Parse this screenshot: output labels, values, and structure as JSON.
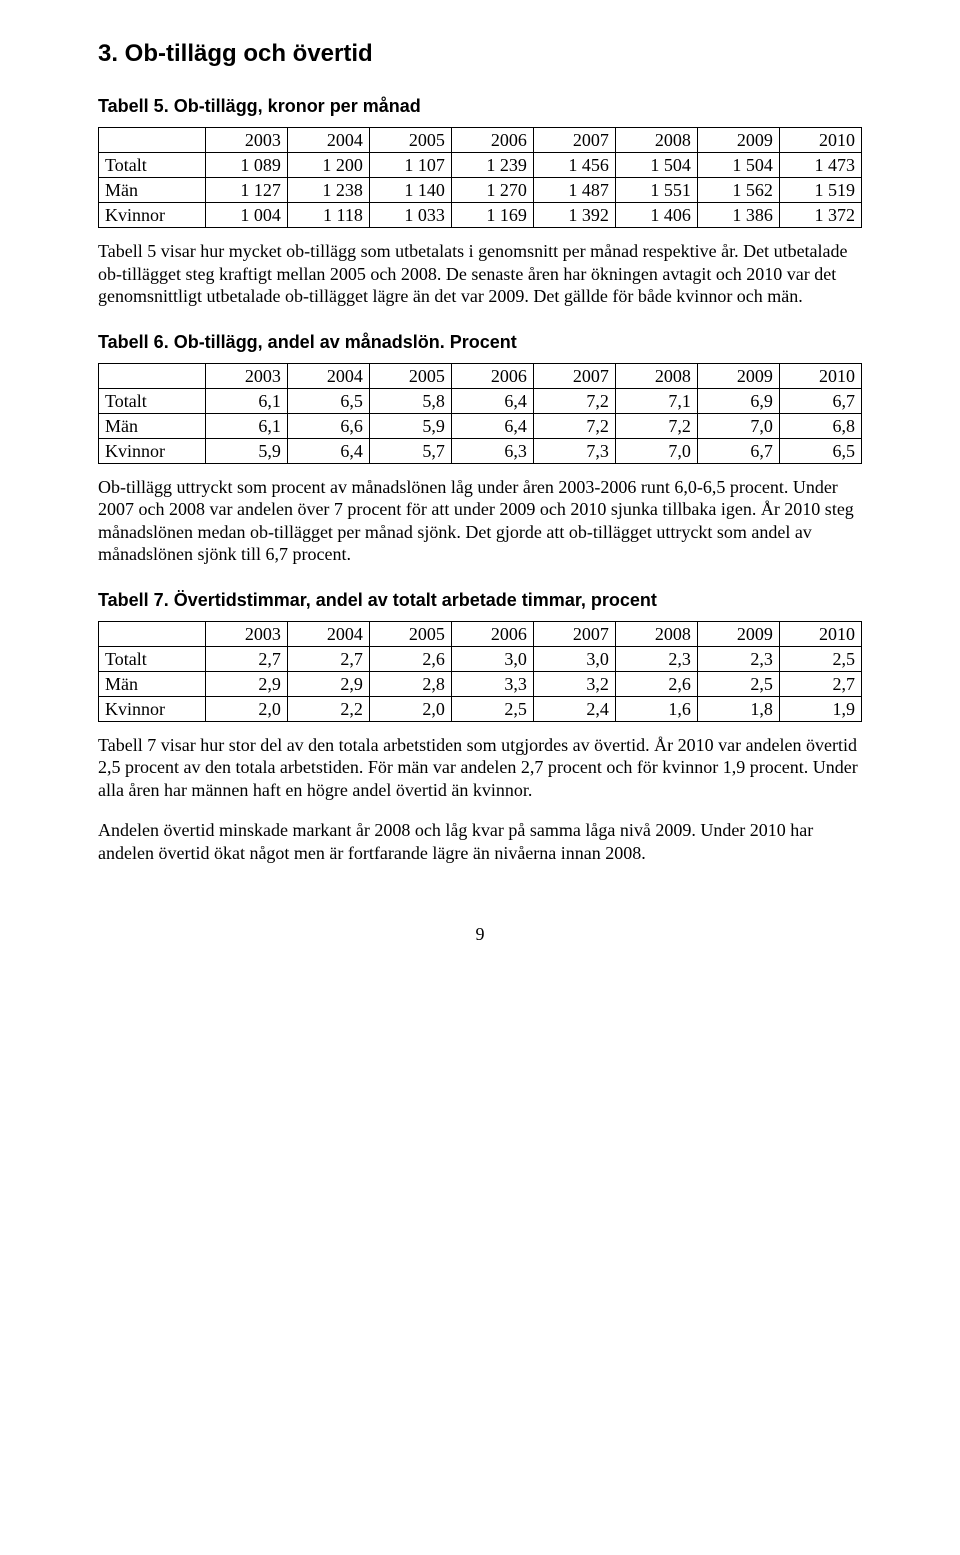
{
  "section_title": "3. Ob-tillägg och övertid",
  "years": [
    "2003",
    "2004",
    "2005",
    "2006",
    "2007",
    "2008",
    "2009",
    "2010"
  ],
  "table5": {
    "title": "Tabell 5. Ob-tillägg, kronor per månad",
    "rows": [
      {
        "label": "Totalt",
        "v": [
          "1 089",
          "1 200",
          "1 107",
          "1 239",
          "1 456",
          "1 504",
          "1 504",
          "1 473"
        ]
      },
      {
        "label": "Män",
        "v": [
          "1 127",
          "1 238",
          "1 140",
          "1 270",
          "1 487",
          "1 551",
          "1 562",
          "1 519"
        ]
      },
      {
        "label": "Kvinnor",
        "v": [
          "1 004",
          "1 118",
          "1 033",
          "1 169",
          "1 392",
          "1 406",
          "1 386",
          "1 372"
        ]
      }
    ]
  },
  "para5": "Tabell 5 visar hur mycket ob-tillägg som utbetalats i genomsnitt per månad respektive år. Det utbetalade ob-tillägget steg kraftigt mellan 2005 och 2008. De senaste åren har ökningen avtagit och 2010 var det genomsnittligt utbetalade ob-tillägget lägre än det var 2009. Det gällde för både kvinnor och män.",
  "table6": {
    "title": "Tabell 6. Ob-tillägg, andel av månadslön. Procent",
    "rows": [
      {
        "label": "Totalt",
        "v": [
          "6,1",
          "6,5",
          "5,8",
          "6,4",
          "7,2",
          "7,1",
          "6,9",
          "6,7"
        ]
      },
      {
        "label": "Män",
        "v": [
          "6,1",
          "6,6",
          "5,9",
          "6,4",
          "7,2",
          "7,2",
          "7,0",
          "6,8"
        ]
      },
      {
        "label": "Kvinnor",
        "v": [
          "5,9",
          "6,4",
          "5,7",
          "6,3",
          "7,3",
          "7,0",
          "6,7",
          "6,5"
        ]
      }
    ]
  },
  "para6": "Ob-tillägg uttryckt som procent av månadslönen låg under åren 2003-2006 runt 6,0-6,5 procent. Under 2007 och 2008 var andelen över 7 procent för att under 2009 och 2010 sjunka tillbaka igen. År 2010 steg månadslönen medan ob-tillägget per månad sjönk. Det gjorde att ob-tillägget uttryckt som andel av månadslönen sjönk till 6,7 procent.",
  "table7": {
    "title": "Tabell 7. Övertidstimmar, andel av totalt arbetade timmar, procent",
    "rows": [
      {
        "label": "Totalt",
        "v": [
          "2,7",
          "2,7",
          "2,6",
          "3,0",
          "3,0",
          "2,3",
          "2,3",
          "2,5"
        ]
      },
      {
        "label": "Män",
        "v": [
          "2,9",
          "2,9",
          "2,8",
          "3,3",
          "3,2",
          "2,6",
          "2,5",
          "2,7"
        ]
      },
      {
        "label": "Kvinnor",
        "v": [
          "2,0",
          "2,2",
          "2,0",
          "2,5",
          "2,4",
          "1,6",
          "1,8",
          "1,9"
        ]
      }
    ]
  },
  "para7a": "Tabell 7 visar hur stor del av den totala arbetstiden som utgjordes av övertid. År 2010 var andelen övertid 2,5 procent av den totala arbetstiden. För män var andelen 2,7 procent och för kvinnor 1,9 procent. Under alla åren har männen haft en högre andel övertid än kvinnor.",
  "para7b": "Andelen övertid minskade markant år 2008 och låg kvar på samma låga nivå 2009. Under 2010 har andelen övertid ökat något men är fortfarande lägre än nivåerna innan 2008.",
  "page_number": "9"
}
